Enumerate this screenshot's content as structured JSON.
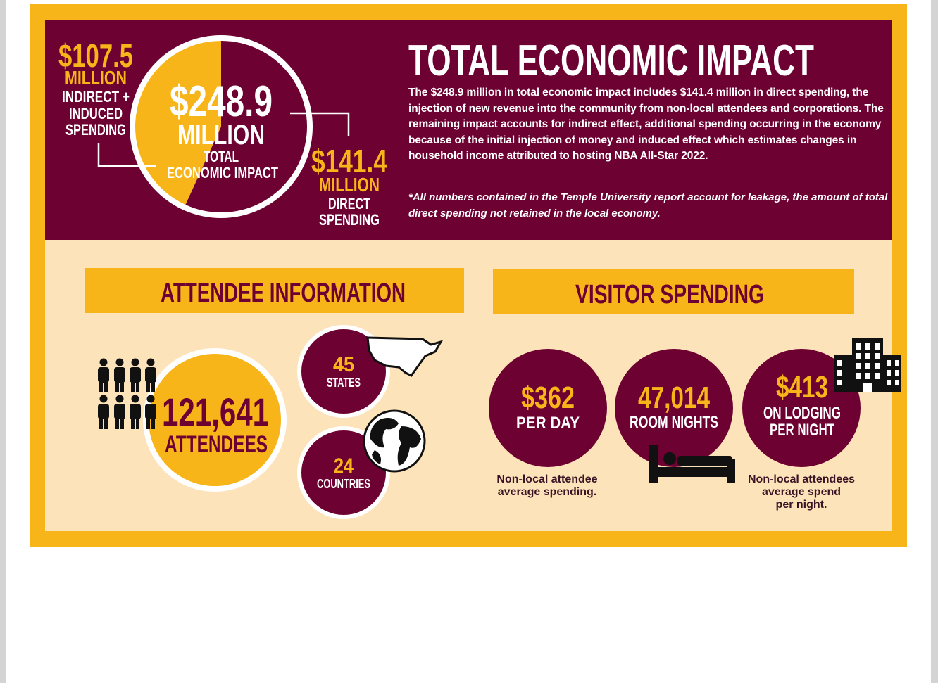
{
  "economic_impact": {
    "title": "TOTAL ECONOMIC IMPACT",
    "total": {
      "amount": "$248.9",
      "unit": "MILLION",
      "label_lines": [
        "TOTAL",
        "ECONOMIC IMPACT"
      ]
    },
    "indirect": {
      "amount": "$107.5",
      "unit": "MILLION",
      "label_lines": [
        "INDIRECT +",
        "INDUCED",
        "SPENDING"
      ]
    },
    "direct": {
      "amount": "$141.4",
      "unit": "MILLION",
      "label_lines": [
        "DIRECT",
        "SPENDING"
      ]
    },
    "split": {
      "indirect": 107.5,
      "direct": 141.4
    },
    "description": "The $248.9 million in total economic impact includes $141.4 million in direct spending, the injection of new revenue into the community from non-local attendees and corporations. The remaining impact accounts for indirect effect, additional spending occurring in the economy because of the initial injection of money and induced effect which estimates changes in household income attributed to hosting NBA All-Star 2022.",
    "note": "*All numbers contained in the Temple University report account for leakage, the amount of total direct spending not retained in the local economy."
  },
  "attendee_information": {
    "heading": "ATTENDEE INFORMATION",
    "attendees": {
      "amount": "121,641",
      "label": "ATTENDEES"
    },
    "states": {
      "amount": "45",
      "label": "STATES"
    },
    "countries": {
      "amount": "24",
      "label": "COUNTRIES"
    }
  },
  "visitor_spending": {
    "heading": "VISITOR SPENDING",
    "items": [
      {
        "amount": "$362",
        "label_lines": [
          "PER DAY"
        ],
        "caption_lines": [
          "Non-local attendee",
          "average spending."
        ]
      },
      {
        "amount": "47,014",
        "label_lines": [
          "ROOM NIGHTS"
        ]
      },
      {
        "amount": "$413",
        "label_lines": [
          "ON LODGING",
          "PER NIGHT"
        ],
        "caption_lines": [
          "Non-local attendees",
          "average spend",
          "per night."
        ]
      }
    ]
  }
}
